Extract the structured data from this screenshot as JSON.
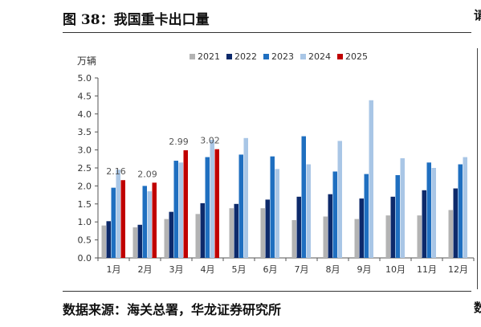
{
  "header": {
    "title": "图 38：我国重卡出口量",
    "right_fragment_top": "请",
    "right_fragment_bottom": "数"
  },
  "footer": {
    "source": "数据来源：海关总署，华龙证券研究所"
  },
  "chart_data": {
    "type": "bar",
    "title": "",
    "ylabel": "万辆",
    "xlabel": "",
    "ylim": [
      0,
      5
    ],
    "yticks": [
      "0.0",
      "0.5",
      "1.0",
      "1.5",
      "2.0",
      "2.5",
      "3.0",
      "3.5",
      "4.0",
      "4.5",
      "5.0"
    ],
    "categories": [
      "1月",
      "2月",
      "3月",
      "4月",
      "5月",
      "6月",
      "7月",
      "8月",
      "9月",
      "10月",
      "11月",
      "12月"
    ],
    "legend_position": "top",
    "series": [
      {
        "name": "2021",
        "color": "#b3b3b3",
        "values": [
          0.9,
          0.85,
          1.08,
          1.22,
          1.38,
          1.38,
          1.05,
          1.15,
          1.08,
          1.18,
          1.18,
          1.33
        ]
      },
      {
        "name": "2022",
        "color": "#0d2a6b",
        "values": [
          1.02,
          0.92,
          1.28,
          1.52,
          1.5,
          1.62,
          1.7,
          1.77,
          1.65,
          1.7,
          1.88,
          1.93
        ]
      },
      {
        "name": "2023",
        "color": "#1f6fc0",
        "values": [
          1.95,
          2.0,
          2.7,
          2.8,
          2.87,
          2.82,
          3.38,
          2.4,
          2.33,
          2.3,
          2.65,
          2.6
        ]
      },
      {
        "name": "2024",
        "color": "#a9c6e6",
        "values": [
          2.45,
          1.85,
          2.65,
          3.28,
          3.33,
          2.47,
          2.6,
          3.25,
          4.38,
          2.77,
          2.5,
          2.8
        ]
      },
      {
        "name": "2025",
        "color": "#c00000",
        "values": [
          2.16,
          2.09,
          2.99,
          3.02,
          null,
          null,
          null,
          null,
          null,
          null,
          null,
          null
        ]
      }
    ],
    "data_labels": [
      {
        "series": "2025",
        "category": "1月",
        "text": "2.16"
      },
      {
        "series": "2025",
        "category": "2月",
        "text": "2.09"
      },
      {
        "series": "2025",
        "category": "3月",
        "text": "2.99"
      },
      {
        "series": "2025",
        "category": "4月",
        "text": "3.02"
      }
    ]
  }
}
